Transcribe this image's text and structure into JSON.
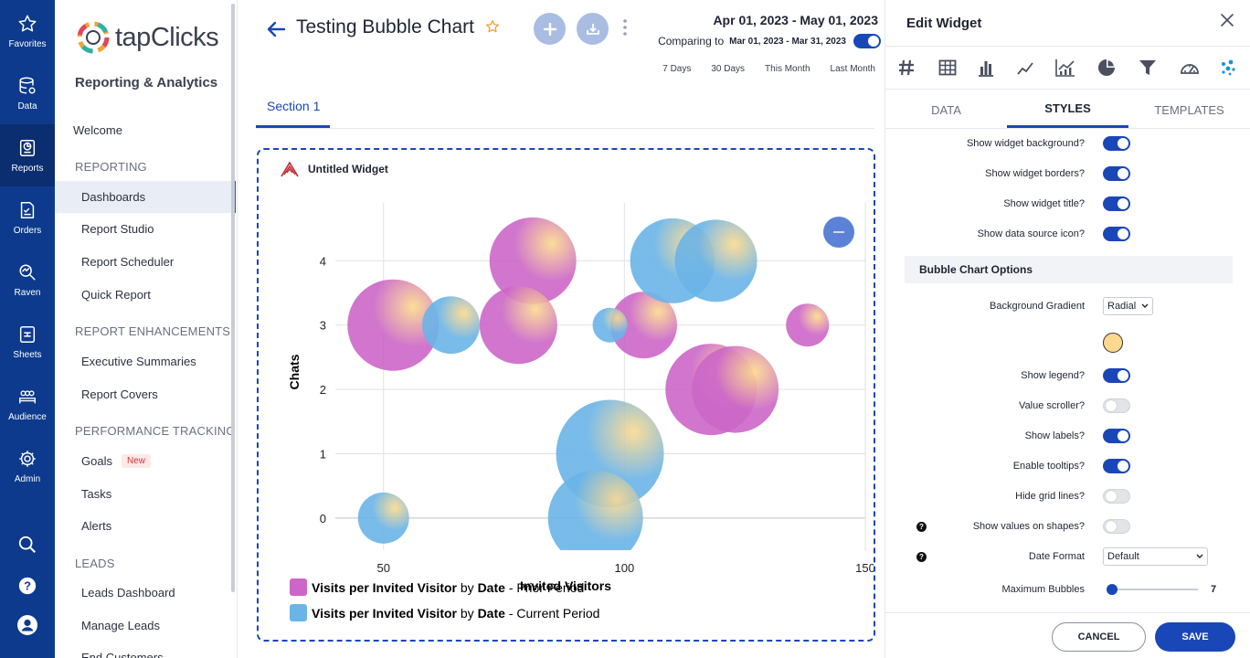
{
  "rail": {
    "items": [
      {
        "label": "Favorites",
        "icon": "star-icon"
      },
      {
        "label": "Data",
        "icon": "database-icon"
      },
      {
        "label": "Reports",
        "icon": "reports-icon"
      },
      {
        "label": "Orders",
        "icon": "orders-icon"
      },
      {
        "label": "Raven",
        "icon": "raven-icon"
      },
      {
        "label": "Sheets",
        "icon": "sheets-icon"
      },
      {
        "label": "Audience",
        "icon": "audience-icon"
      },
      {
        "label": "Admin",
        "icon": "gear-icon"
      }
    ],
    "active": "Reports"
  },
  "nav": {
    "brand": "tapClicks",
    "app_title": "Reporting & Analytics",
    "welcome": "Welcome",
    "sections": {
      "reporting": "REPORTING",
      "enhancements": "REPORT ENHANCEMENTS",
      "performance": "PERFORMANCE TRACKING",
      "leads": "LEADS"
    },
    "items": {
      "dashboards": "Dashboards",
      "report_studio": "Report Studio",
      "report_scheduler": "Report Scheduler",
      "quick_report": "Quick Report",
      "executive_summaries": "Executive Summaries",
      "report_covers": "Report Covers",
      "goals": "Goals",
      "goals_badge": "New",
      "tasks": "Tasks",
      "alerts": "Alerts",
      "leads_dashboard": "Leads Dashboard",
      "manage_leads": "Manage Leads",
      "end_customers": "End Customers"
    }
  },
  "header": {
    "title": "Testing Bubble Chart",
    "date_range": "Apr 01, 2023 - May 01, 2023",
    "comparing_label": "Comparing to",
    "comparing_range": "Mar 01, 2023 - Mar 31, 2023",
    "quick_ranges": [
      "7 Days",
      "30 Days",
      "This Month",
      "Last Month"
    ]
  },
  "section_tab": "Section 1",
  "widget": {
    "title": "Untitled Widget"
  },
  "chart_data": {
    "type": "scatter",
    "subtype": "bubble",
    "xlabel": "Invited Visitors",
    "ylabel": "Chats",
    "xlim": [
      40,
      150
    ],
    "ylim": [
      -0.5,
      4.9
    ],
    "xticks": [
      50,
      100,
      150
    ],
    "yticks": [
      0,
      1,
      2,
      3,
      4
    ],
    "grid": true,
    "legend_position": "bottom-left",
    "series": [
      {
        "name": "Visits per Invited Visitor",
        "name_by": "by",
        "name_dim": "Date",
        "name_suffix": "- Prior Period",
        "color": "#cc66c8",
        "points": [
          {
            "x": 52,
            "y": 3,
            "size": 1.0
          },
          {
            "x": 81,
            "y": 4,
            "size": 0.95
          },
          {
            "x": 78,
            "y": 3,
            "size": 0.85
          },
          {
            "x": 104,
            "y": 3,
            "size": 0.73
          },
          {
            "x": 138,
            "y": 3,
            "size": 0.47
          },
          {
            "x": 118,
            "y": 2,
            "size": 1.0
          },
          {
            "x": 123,
            "y": 2,
            "size": 0.95
          }
        ]
      },
      {
        "name": "Visits per Invited Visitor",
        "name_by": "by",
        "name_dim": "Date",
        "name_suffix": "- Current Period",
        "color": "#6ab4e8",
        "points": [
          {
            "x": 50,
            "y": 0,
            "size": 0.56
          },
          {
            "x": 64,
            "y": 3,
            "size": 0.63
          },
          {
            "x": 97,
            "y": 3,
            "size": 0.38
          },
          {
            "x": 110,
            "y": 4,
            "size": 0.93
          },
          {
            "x": 119,
            "y": 4,
            "size": 0.9
          },
          {
            "x": 97,
            "y": 1,
            "size": 1.18
          },
          {
            "x": 94,
            "y": 0,
            "size": 1.04
          }
        ]
      }
    ]
  },
  "panel": {
    "title": "Edit Widget",
    "widget_types": [
      "number-icon",
      "table-icon",
      "bar-chart-icon",
      "line-chart-icon",
      "combo-chart-icon",
      "pie-chart-icon",
      "funnel-icon",
      "gauge-icon",
      "bubble-chart-icon"
    ],
    "tabs": [
      "DATA",
      "STYLES",
      "TEMPLATES"
    ],
    "active_tab": "STYLES",
    "options": {
      "show_bg": {
        "label": "Show widget background?",
        "on": true
      },
      "show_borders": {
        "label": "Show widget borders?",
        "on": true
      },
      "show_title": {
        "label": "Show widget title?",
        "on": true
      },
      "show_ds_icon": {
        "label": "Show data source icon?",
        "on": true
      },
      "section_header": "Bubble Chart Options",
      "bg_gradient": {
        "label": "Background Gradient",
        "value": "Radial"
      },
      "gradient_color": "#fcd98e",
      "show_legend": {
        "label": "Show legend?",
        "on": true
      },
      "value_scroller": {
        "label": "Value scroller?",
        "on": false
      },
      "show_labels": {
        "label": "Show labels?",
        "on": true
      },
      "tooltips": {
        "label": "Enable tooltips?",
        "on": true
      },
      "hide_grid": {
        "label": "Hide grid lines?",
        "on": false
      },
      "values_on_shapes": {
        "label": "Show values on shapes?",
        "on": false
      },
      "date_format": {
        "label": "Date Format",
        "value": "Default"
      },
      "max_bubbles": {
        "label": "Maximum Bubbles",
        "value": "7"
      }
    },
    "cancel": "CANCEL",
    "save": "SAVE"
  }
}
